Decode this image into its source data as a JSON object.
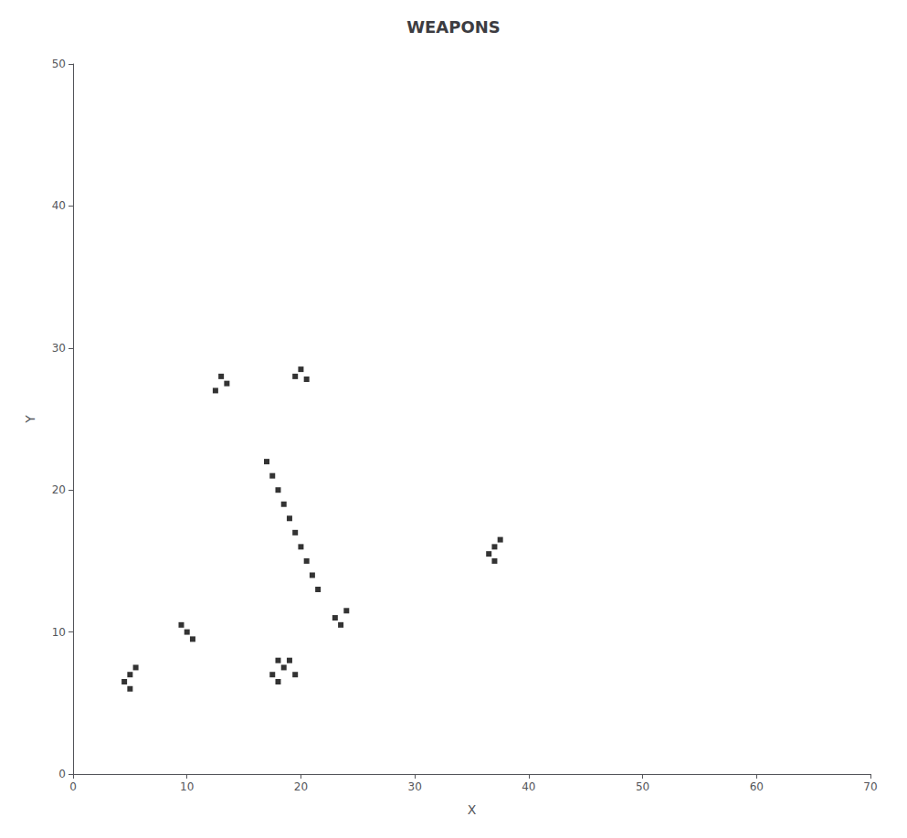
{
  "chart_data": {
    "type": "scatter",
    "title": "WEAPONS",
    "xlabel": "X",
    "ylabel": "Y",
    "xlim": [
      0,
      70
    ],
    "ylim": [
      0,
      50
    ],
    "xticks": [
      0,
      10,
      20,
      30,
      40,
      50,
      60,
      70
    ],
    "yticks": [
      0,
      10,
      20,
      30,
      40,
      50
    ],
    "grid": false,
    "color": "#000000",
    "marker": "square",
    "x": [
      13.0,
      13.5,
      12.5,
      20.0,
      20.5,
      19.5,
      17.0,
      17.5,
      18.0,
      18.5,
      19.0,
      19.5,
      20.0,
      20.5,
      21.0,
      21.5,
      18.0,
      18.5,
      17.5,
      18.0,
      19.0,
      19.5,
      5.0,
      4.5,
      5.5,
      5.0,
      37.0,
      36.5,
      37.5,
      37.0,
      10.0,
      10.5,
      9.5,
      23.0,
      23.5,
      24.0
    ],
    "values": [
      28.0,
      27.5,
      27.0,
      28.5,
      27.8,
      28.0,
      22.0,
      21.0,
      20.0,
      19.0,
      18.0,
      17.0,
      16.0,
      15.0,
      14.0,
      13.0,
      8.0,
      7.5,
      7.0,
      6.5,
      8.0,
      7.0,
      7.0,
      6.5,
      7.5,
      6.0,
      16.0,
      15.5,
      16.5,
      15.0,
      10.0,
      9.5,
      10.5,
      11.0,
      10.5,
      11.5
    ]
  }
}
